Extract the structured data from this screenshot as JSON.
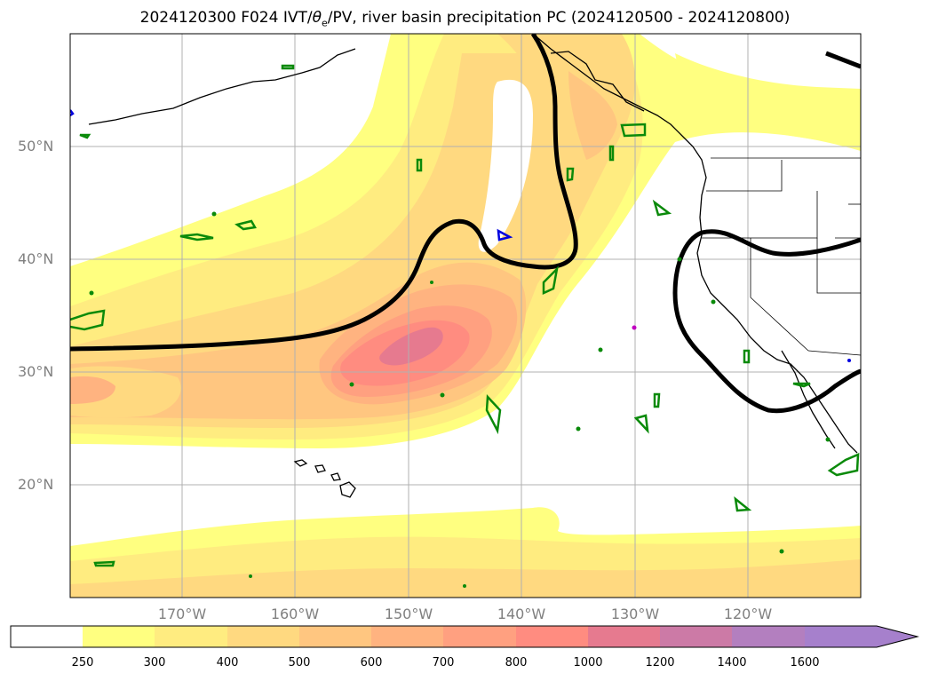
{
  "title": {
    "prefix": "2024120300 F024 IVT/",
    "theta_symbol": "θ",
    "theta_sub": "e",
    "suffix": "/PV, river basin precipitation PC (2024120500 - 2024120800)"
  },
  "map": {
    "lat_labels": [
      "50°N",
      "40°N",
      "30°N",
      "20°N"
    ],
    "lon_labels": [
      "170°W",
      "160°W",
      "150°W",
      "140°W",
      "130°W",
      "120°W"
    ],
    "gridlines": true,
    "features": [
      "ivt-shading",
      "pv-contour",
      "theta-e-contours",
      "coastlines",
      "state-borders",
      "hawaiian-islands"
    ]
  },
  "colorbar": {
    "ticks": [
      "250",
      "300",
      "400",
      "500",
      "600",
      "700",
      "800",
      "1000",
      "1200",
      "1400",
      "1600"
    ],
    "colors": [
      "#ffffff",
      "#ffff80",
      "#ffec80",
      "#ffd980",
      "#ffc680",
      "#ffb380",
      "#ffa080",
      "#ff8c80",
      "#e67a8f",
      "#cc7aa6",
      "#b37fbf",
      "#a680cc"
    ],
    "extend": "max"
  }
}
